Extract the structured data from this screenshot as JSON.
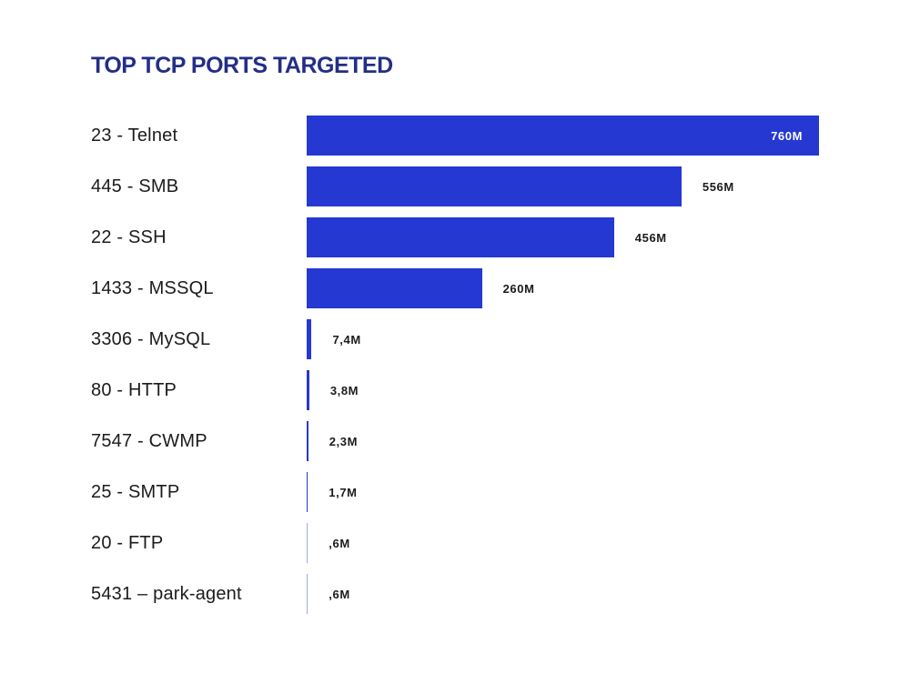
{
  "title": "TOP TCP PORTS TARGETED",
  "colors": {
    "bar": "#2538d2",
    "bar_faint": "#9fa9e0",
    "title": "#232e87",
    "category_text": "#1b1b1b",
    "value_text_outside": "#1b1b1b",
    "value_text_inside": "#ffffff",
    "background": "#ffffff"
  },
  "chart_data": {
    "type": "bar",
    "orientation": "horizontal",
    "title": "TOP TCP PORTS TARGETED",
    "xlabel": "",
    "ylabel": "",
    "unit": "M",
    "xlim": [
      0,
      760
    ],
    "grid": false,
    "legend": false,
    "categories": [
      "23 - Telnet",
      "445 - SMB",
      "22 - SSH",
      "1433 - MSSQL",
      "3306 - MySQL",
      "80 - HTTP",
      "7547 - CWMP",
      "25 - SMTP",
      "20 - FTP",
      "5431 – park-agent"
    ],
    "values": [
      760,
      556,
      456,
      260,
      7.4,
      3.8,
      2.3,
      1.7,
      0.6,
      0.6
    ],
    "value_labels": [
      "760M",
      "556M",
      "456M",
      "260M",
      "7,4M",
      "3,8M",
      "2,3M",
      "1,7M",
      ",6M",
      ",6M"
    ],
    "inside_label_index": 0
  }
}
